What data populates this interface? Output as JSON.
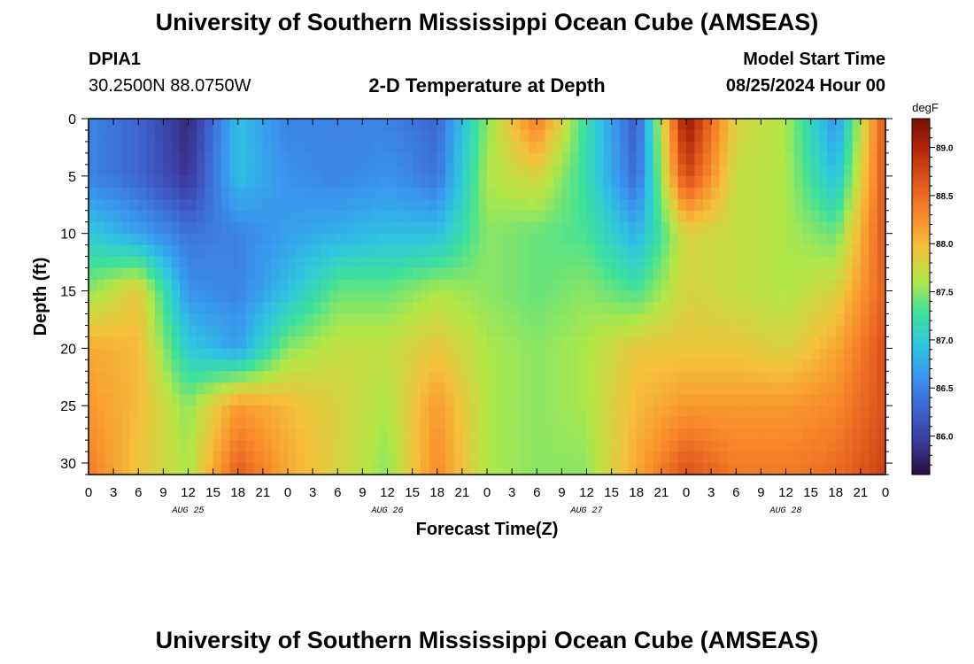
{
  "page": {
    "title": "University of Southern Mississippi Ocean Cube (AMSEAS)",
    "footer_title": "University of Southern Mississippi Ocean Cube (AMSEAS)",
    "station_id": "DPIA1",
    "station_coords": "30.2500N  88.0750W",
    "subtitle": "2-D Temperature at Depth",
    "model_start_label": "Model Start Time",
    "model_start_value": "08/25/2024 Hour 00"
  },
  "chart_data": {
    "type": "heatmap",
    "title": "2-D Temperature at Depth",
    "xlabel": "Forecast Time(Z)",
    "ylabel": "Depth (ft)",
    "x_range": [
      0,
      96
    ],
    "y_range": [
      0,
      31
    ],
    "y_inverted": true,
    "x_tick_labels": [
      "0",
      "3",
      "6",
      "9",
      "12",
      "15",
      "18",
      "21",
      "0",
      "3",
      "6",
      "9",
      "12",
      "15",
      "18",
      "21",
      "0",
      "3",
      "6",
      "9",
      "12",
      "15",
      "18",
      "21",
      "0",
      "3",
      "6",
      "9",
      "12",
      "15",
      "18",
      "21",
      "0"
    ],
    "date_labels": [
      {
        "label": "AUG 25",
        "hour": 12
      },
      {
        "label": "AUG 26",
        "hour": 36
      },
      {
        "label": "AUG 27",
        "hour": 60
      },
      {
        "label": "AUG 28",
        "hour": 84
      }
    ],
    "y_ticks": [
      0,
      5,
      10,
      15,
      20,
      25,
      30
    ],
    "colorbar": {
      "unit": "degF",
      "min": 85.6,
      "max": 89.3,
      "ticks": [
        "86.0",
        "86.5",
        "87.0",
        "87.5",
        "88.0",
        "88.5",
        "89.0"
      ],
      "colors": [
        "#2a0f3f",
        "#3a3a9a",
        "#3f62cf",
        "#3a93ef",
        "#2ec6e0",
        "#3fe19a",
        "#b4e746",
        "#f4c13a",
        "#f98a2c",
        "#e05a1c",
        "#b52a0c",
        "#7a0c05"
      ]
    },
    "depths_ft": [
      0,
      5,
      10,
      15,
      20,
      25,
      31
    ],
    "hours": [
      0,
      6,
      12,
      18,
      24,
      30,
      36,
      42,
      48,
      54,
      60,
      66,
      72,
      78,
      84,
      90,
      96
    ],
    "values_degF": [
      [
        86.5,
        86.3,
        85.8,
        86.9,
        86.5,
        86.5,
        86.5,
        86.3,
        87.5,
        88.4,
        87.2,
        86.2,
        89.2,
        87.8,
        87.6,
        86.6,
        88.7
      ],
      [
        86.5,
        86.3,
        85.9,
        86.9,
        86.6,
        86.5,
        86.6,
        86.4,
        87.6,
        87.8,
        87.2,
        86.3,
        88.8,
        87.7,
        87.6,
        86.9,
        88.7
      ],
      [
        87.0,
        86.7,
        86.4,
        86.5,
        86.7,
        86.8,
        86.9,
        86.9,
        87.5,
        87.4,
        87.3,
        86.8,
        87.8,
        87.7,
        87.6,
        87.4,
        88.7
      ],
      [
        87.5,
        87.9,
        86.6,
        86.5,
        86.9,
        87.4,
        87.4,
        87.6,
        87.5,
        87.4,
        87.5,
        87.3,
        87.8,
        87.7,
        87.6,
        87.8,
        88.6
      ],
      [
        88.1,
        88.0,
        87.0,
        86.7,
        87.5,
        87.7,
        87.7,
        87.9,
        87.6,
        87.5,
        87.6,
        87.9,
        87.9,
        87.9,
        87.8,
        88.1,
        88.7
      ],
      [
        88.2,
        88.0,
        87.5,
        88.2,
        88.0,
        87.8,
        87.6,
        88.2,
        87.6,
        87.5,
        87.6,
        88.0,
        88.2,
        88.2,
        88.2,
        88.3,
        88.7
      ],
      [
        88.4,
        87.9,
        87.6,
        88.6,
        88.1,
        87.8,
        87.5,
        88.3,
        87.6,
        87.5,
        87.5,
        88.1,
        88.7,
        88.4,
        88.4,
        88.5,
        88.8
      ]
    ]
  },
  "axes": {
    "ylabel": "Depth (ft)",
    "xlabel": "Forecast Time(Z)",
    "colorbar_unit": "degF"
  }
}
